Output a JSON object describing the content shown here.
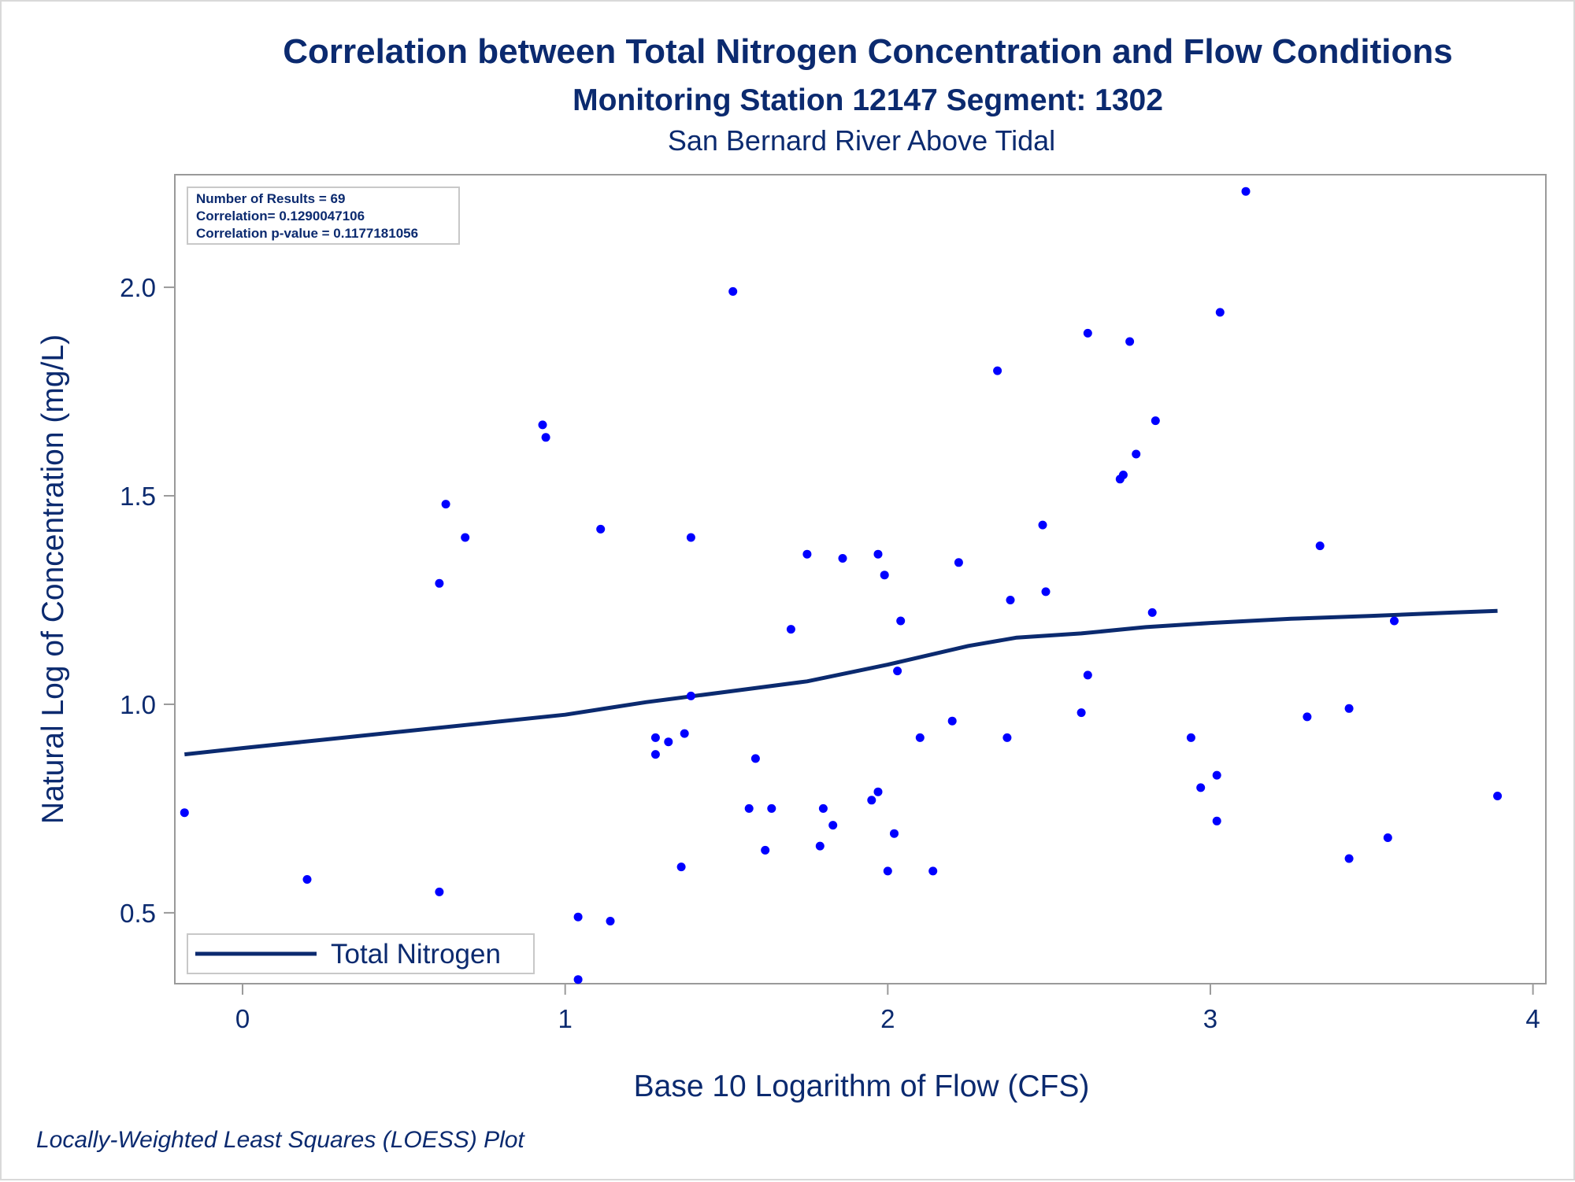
{
  "chart_data": {
    "type": "scatter",
    "title": "Correlation between Total Nitrogen Concentration and Flow Conditions",
    "subtitle": "Monitoring Station 12147 Segment: 1302",
    "subtitle2": "San Bernard River Above Tidal",
    "xlabel": "Base 10 Logarithm of Flow (CFS)",
    "ylabel": "Natural Log of Concentration (mg/L)",
    "xlim": [
      -0.21,
      4.04
    ],
    "ylim": [
      0.33,
      2.27
    ],
    "x_ticks": [
      0,
      1,
      2,
      3,
      4
    ],
    "x_tick_labels": [
      "0",
      "1",
      "2",
      "3",
      "4"
    ],
    "y_ticks": [
      0.5,
      1.0,
      1.5,
      2.0
    ],
    "y_tick_labels": [
      "0.5",
      "1.0",
      "1.5",
      "2.0"
    ],
    "grid": false,
    "legend_placement": "bottom-left",
    "stats": [
      "Number of Results = 69",
      "Correlation= 0.1290047106",
      "Correlation p-value = 0.1177181056"
    ],
    "footnote": "Locally-Weighted Least Squares (LOESS) Plot",
    "point_color": "#0000ff",
    "line_color": "#0b2a6f",
    "series": [
      {
        "type": "scatter",
        "points": [
          [
            -0.18,
            0.74
          ],
          [
            0.2,
            0.58
          ],
          [
            0.61,
            0.55
          ],
          [
            0.61,
            1.29
          ],
          [
            0.63,
            1.48
          ],
          [
            0.69,
            1.4
          ],
          [
            0.93,
            1.67
          ],
          [
            0.94,
            1.64
          ],
          [
            1.04,
            0.49
          ],
          [
            1.04,
            0.34
          ],
          [
            1.11,
            1.42
          ],
          [
            1.14,
            0.48
          ],
          [
            1.28,
            0.92
          ],
          [
            1.28,
            0.88
          ],
          [
            1.32,
            0.91
          ],
          [
            1.36,
            0.61
          ],
          [
            1.37,
            0.93
          ],
          [
            1.39,
            1.4
          ],
          [
            1.39,
            1.02
          ],
          [
            1.52,
            1.99
          ],
          [
            1.57,
            0.75
          ],
          [
            1.59,
            0.87
          ],
          [
            1.62,
            0.65
          ],
          [
            1.64,
            0.75
          ],
          [
            1.7,
            1.18
          ],
          [
            1.75,
            1.36
          ],
          [
            1.79,
            0.66
          ],
          [
            1.8,
            0.75
          ],
          [
            1.83,
            0.71
          ],
          [
            1.86,
            1.35
          ],
          [
            1.95,
            0.77
          ],
          [
            1.97,
            1.36
          ],
          [
            1.97,
            0.79
          ],
          [
            1.99,
            1.31
          ],
          [
            2.0,
            0.6
          ],
          [
            2.02,
            0.69
          ],
          [
            2.03,
            1.08
          ],
          [
            2.04,
            1.2
          ],
          [
            2.1,
            0.92
          ],
          [
            2.14,
            0.6
          ],
          [
            2.2,
            0.96
          ],
          [
            2.22,
            1.34
          ],
          [
            2.34,
            1.8
          ],
          [
            2.37,
            0.92
          ],
          [
            2.38,
            1.25
          ],
          [
            2.48,
            1.43
          ],
          [
            2.49,
            1.27
          ],
          [
            2.6,
            0.98
          ],
          [
            2.62,
            1.89
          ],
          [
            2.62,
            1.07
          ],
          [
            2.72,
            1.54
          ],
          [
            2.73,
            1.55
          ],
          [
            2.75,
            1.87
          ],
          [
            2.77,
            1.6
          ],
          [
            2.82,
            1.22
          ],
          [
            2.83,
            1.68
          ],
          [
            2.94,
            0.92
          ],
          [
            2.97,
            0.8
          ],
          [
            3.02,
            0.72
          ],
          [
            3.02,
            0.83
          ],
          [
            3.03,
            1.94
          ],
          [
            3.11,
            2.23
          ],
          [
            3.3,
            0.97
          ],
          [
            3.34,
            1.38
          ],
          [
            3.43,
            0.99
          ],
          [
            3.43,
            0.63
          ],
          [
            3.55,
            0.68
          ],
          [
            3.57,
            1.2
          ],
          [
            3.89,
            0.78
          ]
        ]
      },
      {
        "type": "line",
        "name": "Total Nitrogen",
        "points": [
          [
            -0.18,
            0.88
          ],
          [
            0.0,
            0.895
          ],
          [
            0.25,
            0.915
          ],
          [
            0.5,
            0.935
          ],
          [
            0.75,
            0.955
          ],
          [
            1.0,
            0.975
          ],
          [
            1.25,
            1.005
          ],
          [
            1.5,
            1.03
          ],
          [
            1.75,
            1.055
          ],
          [
            2.0,
            1.095
          ],
          [
            2.25,
            1.14
          ],
          [
            2.4,
            1.16
          ],
          [
            2.6,
            1.17
          ],
          [
            2.8,
            1.185
          ],
          [
            3.0,
            1.195
          ],
          [
            3.25,
            1.205
          ],
          [
            3.5,
            1.212
          ],
          [
            3.75,
            1.22
          ],
          [
            3.89,
            1.224
          ]
        ]
      }
    ]
  }
}
